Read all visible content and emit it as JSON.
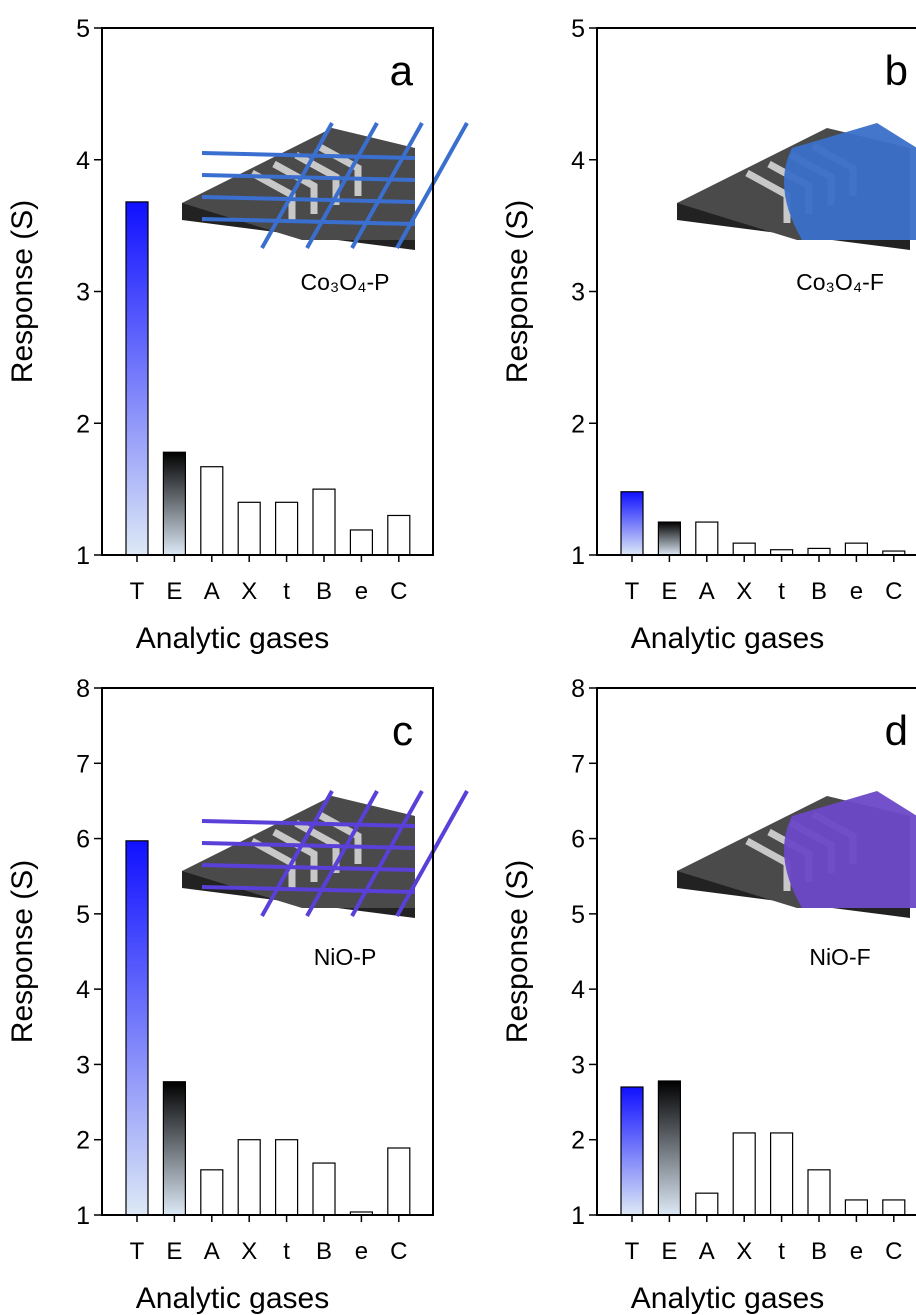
{
  "chart_data": [
    {
      "type": "bar",
      "label": "a",
      "sample": "Co₃O₄-P",
      "ylabel": "Response (S)",
      "xlabel": "Analytic gases",
      "categories": [
        "T",
        "E",
        "A",
        "X",
        "t",
        "B",
        "e",
        "C"
      ],
      "values": [
        3.68,
        1.78,
        1.67,
        1.4,
        1.4,
        1.5,
        1.19,
        1.3
      ],
      "colors": [
        "#1010ff",
        "#000000",
        "#ffffff",
        "#ffffff",
        "#ffffff",
        "#ffffff",
        "#ffffff",
        "#ffffff"
      ],
      "ylim": [
        1,
        5
      ],
      "yticks": [
        1,
        2,
        3,
        4,
        5
      ]
    },
    {
      "type": "bar",
      "label": "b",
      "sample": "Co₃O₄-F",
      "ylabel": "Response (S)",
      "xlabel": "Analytic gases",
      "categories": [
        "T",
        "E",
        "A",
        "X",
        "t",
        "B",
        "e",
        "C"
      ],
      "values": [
        1.48,
        1.25,
        1.25,
        1.09,
        1.04,
        1.05,
        1.09,
        1.03
      ],
      "colors": [
        "#1010ff",
        "#000000",
        "#ffffff",
        "#ffffff",
        "#ffffff",
        "#ffffff",
        "#ffffff",
        "#ffffff"
      ],
      "ylim": [
        1,
        5
      ],
      "yticks": [
        1,
        2,
        3,
        4,
        5
      ]
    },
    {
      "type": "bar",
      "label": "c",
      "sample": "NiO-P",
      "ylabel": "Response (S)",
      "xlabel": "Analytic gases",
      "categories": [
        "T",
        "E",
        "A",
        "X",
        "t",
        "B",
        "e",
        "C"
      ],
      "values": [
        5.97,
        2.77,
        1.6,
        2.0,
        2.0,
        1.69,
        1.04,
        1.89
      ],
      "colors": [
        "#1010ff",
        "#000000",
        "#ffffff",
        "#ffffff",
        "#ffffff",
        "#ffffff",
        "#ffffff",
        "#ffffff"
      ],
      "ylim": [
        1,
        8
      ],
      "yticks": [
        1,
        2,
        3,
        4,
        5,
        6,
        7,
        8
      ]
    },
    {
      "type": "bar",
      "label": "d",
      "sample": "NiO-F",
      "ylabel": "Response (S)",
      "xlabel": "Analytic gases",
      "categories": [
        "T",
        "E",
        "A",
        "X",
        "t",
        "B",
        "e",
        "C"
      ],
      "values": [
        2.7,
        2.78,
        1.29,
        2.09,
        2.09,
        1.6,
        1.2,
        1.2
      ],
      "colors": [
        "#1010ff",
        "#000000",
        "#ffffff",
        "#ffffff",
        "#ffffff",
        "#ffffff",
        "#ffffff",
        "#ffffff"
      ],
      "ylim": [
        1,
        8
      ],
      "yticks": [
        1,
        2,
        3,
        4,
        5,
        6,
        7,
        8
      ]
    }
  ]
}
